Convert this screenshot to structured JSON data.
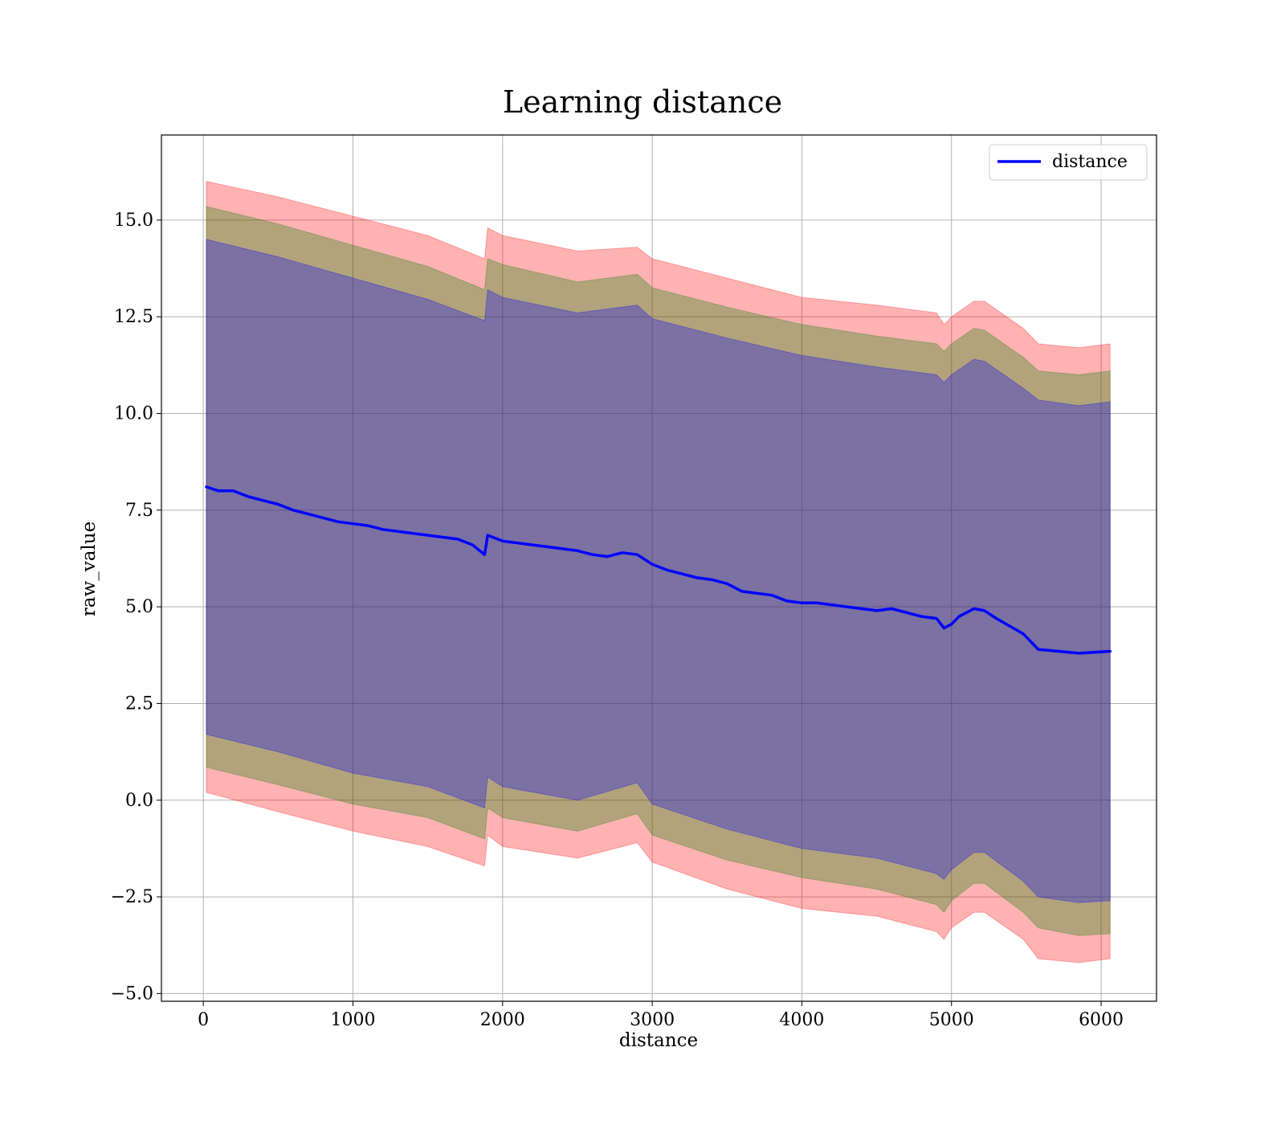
{
  "chart_data": {
    "type": "line",
    "title": "Learning distance",
    "xlabel": "distance",
    "ylabel": "raw_value",
    "xlim": [
      -280,
      6370
    ],
    "ylim": [
      -5.2,
      17.2
    ],
    "xticks": [
      0,
      1000,
      2000,
      3000,
      4000,
      5000,
      6000
    ],
    "xtick_labels": [
      "0",
      "1000",
      "2000",
      "3000",
      "4000",
      "5000",
      "6000"
    ],
    "yticks": [
      -5.0,
      -2.5,
      0.0,
      2.5,
      5.0,
      7.5,
      10.0,
      12.5,
      15.0
    ],
    "ytick_labels": [
      "−5.0",
      "−2.5",
      "0.0",
      "2.5",
      "5.0",
      "7.5",
      "10.0",
      "12.5",
      "15.0"
    ],
    "grid": true,
    "legend_position": "top-right",
    "series": [
      {
        "name": "distance",
        "color": "#0000ff",
        "x": [
          20,
          100,
          200,
          300,
          400,
          500,
          600,
          700,
          800,
          900,
          1000,
          1100,
          1200,
          1300,
          1400,
          1500,
          1600,
          1700,
          1800,
          1880,
          1900,
          2000,
          2100,
          2200,
          2300,
          2400,
          2500,
          2600,
          2700,
          2800,
          2900,
          3000,
          3100,
          3200,
          3300,
          3400,
          3500,
          3600,
          3700,
          3800,
          3900,
          4000,
          4100,
          4200,
          4300,
          4400,
          4500,
          4600,
          4700,
          4800,
          4900,
          4950,
          5000,
          5050,
          5150,
          5220,
          5300,
          5480,
          5580,
          5850,
          6060
        ],
        "y": [
          8.1,
          8.0,
          8.0,
          7.85,
          7.75,
          7.65,
          7.5,
          7.4,
          7.3,
          7.2,
          7.15,
          7.1,
          7.0,
          6.95,
          6.9,
          6.85,
          6.8,
          6.75,
          6.6,
          6.35,
          6.85,
          6.7,
          6.65,
          6.6,
          6.55,
          6.5,
          6.45,
          6.35,
          6.3,
          6.4,
          6.35,
          6.1,
          5.95,
          5.85,
          5.75,
          5.7,
          5.6,
          5.4,
          5.35,
          5.3,
          5.15,
          5.1,
          5.1,
          5.05,
          5.0,
          4.95,
          4.9,
          4.95,
          4.85,
          4.75,
          4.7,
          4.45,
          4.55,
          4.75,
          4.95,
          4.9,
          4.7,
          4.3,
          3.9,
          3.8,
          3.85
        ]
      }
    ],
    "bands": [
      {
        "color": "#ff0000",
        "opacity": 0.3,
        "x": [
          20,
          500,
          1000,
          1500,
          1880,
          1900,
          2000,
          2500,
          2900,
          3000,
          3500,
          4000,
          4500,
          4900,
          4950,
          5000,
          5150,
          5220,
          5480,
          5580,
          5850,
          6060
        ],
        "upper": [
          16.0,
          15.6,
          15.1,
          14.6,
          14.0,
          14.8,
          14.6,
          14.2,
          14.3,
          14.0,
          13.5,
          13.0,
          12.8,
          12.6,
          12.3,
          12.5,
          12.9,
          12.9,
          12.2,
          11.8,
          11.7,
          11.8
        ],
        "lower": [
          0.2,
          -0.3,
          -0.8,
          -1.2,
          -1.7,
          -0.9,
          -1.2,
          -1.5,
          -1.1,
          -1.6,
          -2.3,
          -2.8,
          -3.0,
          -3.4,
          -3.6,
          -3.3,
          -2.9,
          -2.9,
          -3.6,
          -4.1,
          -4.2,
          -4.1
        ]
      },
      {
        "color": "#008000",
        "opacity": 0.3,
        "x": [
          20,
          500,
          1000,
          1500,
          1880,
          1900,
          2000,
          2500,
          2900,
          3000,
          3500,
          4000,
          4500,
          4900,
          4950,
          5000,
          5150,
          5220,
          5480,
          5580,
          5850,
          6060
        ],
        "upper": [
          15.35,
          14.9,
          14.35,
          13.8,
          13.2,
          14.0,
          13.85,
          13.4,
          13.6,
          13.25,
          12.75,
          12.3,
          12.0,
          11.8,
          11.6,
          11.8,
          12.2,
          12.15,
          11.45,
          11.1,
          11.0,
          11.1
        ],
        "lower": [
          0.85,
          0.4,
          -0.1,
          -0.45,
          -1.0,
          -0.2,
          -0.45,
          -0.8,
          -0.35,
          -0.9,
          -1.55,
          -2.0,
          -2.3,
          -2.7,
          -2.9,
          -2.6,
          -2.15,
          -2.15,
          -2.9,
          -3.3,
          -3.5,
          -3.45
        ]
      },
      {
        "color": "#0000ff",
        "opacity": 0.3,
        "x": [
          20,
          500,
          1000,
          1500,
          1880,
          1900,
          2000,
          2500,
          2900,
          3000,
          3500,
          4000,
          4500,
          4900,
          4950,
          5000,
          5150,
          5220,
          5480,
          5580,
          5850,
          6060
        ],
        "upper": [
          14.5,
          14.05,
          13.5,
          12.95,
          12.4,
          13.2,
          13.0,
          12.6,
          12.8,
          12.45,
          11.95,
          11.5,
          11.2,
          11.0,
          10.8,
          11.0,
          11.4,
          11.35,
          10.65,
          10.35,
          10.2,
          10.3
        ],
        "lower": [
          1.7,
          1.25,
          0.7,
          0.35,
          -0.2,
          0.6,
          0.35,
          0.0,
          0.45,
          -0.1,
          -0.75,
          -1.25,
          -1.5,
          -1.9,
          -2.05,
          -1.8,
          -1.35,
          -1.35,
          -2.1,
          -2.5,
          -2.65,
          -2.6
        ]
      }
    ]
  }
}
